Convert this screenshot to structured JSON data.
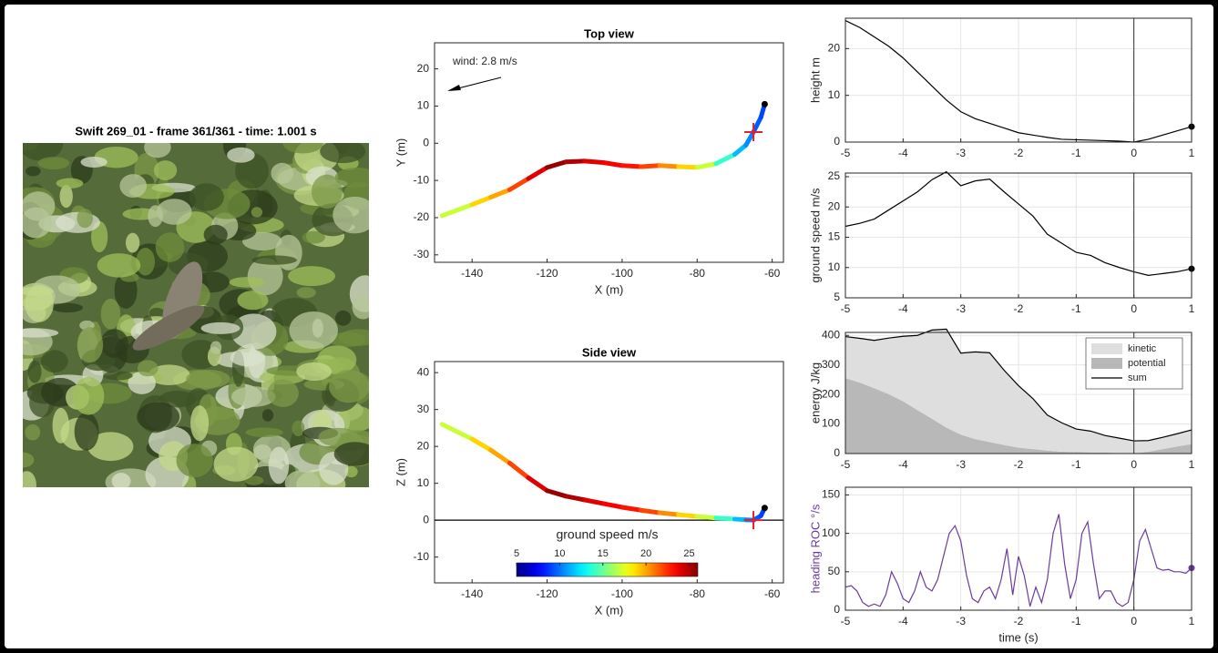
{
  "image_panel": {
    "title": "Swift 269_01 - frame 361/361 - time: 1.001 s"
  },
  "chart_data": [
    {
      "type": "trajectory",
      "title": "Top view",
      "xlabel": "X (m)",
      "ylabel": "Y (m)",
      "annotation": "wind: 2.8 m/s",
      "xlim": [
        -150,
        -57
      ],
      "ylim": [
        -32,
        27
      ],
      "xticks": [
        -140,
        -120,
        -100,
        -80,
        -60
      ],
      "yticks": [
        -30,
        -20,
        -10,
        0,
        10,
        20
      ],
      "colormap": "jet",
      "clim": [
        5,
        26
      ],
      "x": [
        -148,
        -140,
        -135,
        -130,
        -125,
        -120,
        -115,
        -110,
        -105,
        -100,
        -95,
        -90,
        -85,
        -80,
        -75,
        -70,
        -67,
        -65,
        -63,
        -62
      ],
      "values": [
        -19.5,
        -16.5,
        -14.5,
        -12.5,
        -9.5,
        -6.5,
        -5,
        -4.8,
        -5.2,
        -6,
        -6.3,
        -6,
        -6.3,
        -6.5,
        -5.5,
        -3,
        -0.5,
        3,
        7,
        10.5
      ],
      "speed": [
        17,
        19,
        20,
        22,
        24,
        25.5,
        25,
        24,
        23.5,
        23,
        22,
        20.5,
        19,
        17,
        14,
        11.5,
        10.5,
        9.5,
        9,
        9.5
      ],
      "markers": [
        {
          "x": -65,
          "y": 3,
          "shape": "plus",
          "color": "#e8202a"
        },
        {
          "x": -62,
          "y": 10.5,
          "shape": "dot",
          "color": "#000000"
        }
      ]
    },
    {
      "type": "trajectory",
      "title": "Side view",
      "xlabel": "X (m)",
      "ylabel": "Z (m)",
      "xlim": [
        -150,
        -57
      ],
      "ylim": [
        -17,
        43
      ],
      "xticks": [
        -140,
        -120,
        -100,
        -80,
        -60
      ],
      "yticks": [
        -10,
        0,
        10,
        20,
        30,
        40
      ],
      "hline": 0,
      "colormap": "jet",
      "clim": [
        5,
        26
      ],
      "colorbar": {
        "label": "ground speed m/s",
        "ticks": [
          5,
          10,
          15,
          20,
          25
        ]
      },
      "x": [
        -148,
        -140,
        -135,
        -130,
        -125,
        -120,
        -115,
        -110,
        -105,
        -100,
        -95,
        -90,
        -85,
        -80,
        -75,
        -70,
        -67,
        -65,
        -63,
        -62
      ],
      "values": [
        26,
        22,
        19,
        15.5,
        11.5,
        8,
        6.5,
        5.5,
        4.5,
        3.5,
        2.7,
        2,
        1.5,
        1,
        0.6,
        0.3,
        0.1,
        0,
        1.2,
        3.3
      ],
      "speed": [
        17,
        19,
        20,
        22,
        24,
        25.5,
        25,
        24,
        23.5,
        23,
        22,
        20.5,
        19,
        17,
        14,
        11.5,
        10.5,
        9.5,
        9,
        9.5
      ],
      "markers": [
        {
          "x": -65,
          "y": 0,
          "shape": "plus",
          "color": "#e8202a"
        },
        {
          "x": -62,
          "y": 3.3,
          "shape": "dot",
          "color": "#000000"
        }
      ]
    },
    {
      "type": "line",
      "ylabel": "height m",
      "grid": true,
      "vline": 0,
      "end_marker": true,
      "xlim": [
        -5,
        1
      ],
      "ylim": [
        0,
        26.5
      ],
      "xticks": [
        -5,
        -4,
        -3,
        -2,
        -1,
        0,
        1
      ],
      "yticks": [
        0,
        10,
        20
      ],
      "x": [
        -5,
        -4.75,
        -4.5,
        -4.25,
        -4,
        -3.75,
        -3.5,
        -3.25,
        -3,
        -2.75,
        -2.5,
        -2.25,
        -2,
        -1.75,
        -1.5,
        -1.25,
        -1,
        -0.75,
        -0.5,
        -0.25,
        0,
        0.25,
        0.5,
        0.75,
        1
      ],
      "series": [
        {
          "color": "#000000",
          "values": [
            26,
            24.5,
            22.5,
            20.5,
            18,
            15,
            12,
            9,
            6.5,
            5,
            4,
            3,
            2,
            1.5,
            1,
            0.6,
            0.5,
            0.4,
            0.3,
            0.2,
            0,
            0.6,
            1.5,
            2.4,
            3.3
          ]
        }
      ]
    },
    {
      "type": "line",
      "ylabel": "ground speed m/s",
      "grid": true,
      "vline": 0,
      "end_marker": true,
      "xlim": [
        -5,
        1
      ],
      "ylim": [
        5,
        25.6
      ],
      "xticks": [
        -5,
        -4,
        -3,
        -2,
        -1,
        0,
        1
      ],
      "yticks": [
        5,
        10,
        15,
        20,
        25
      ],
      "x": [
        -5,
        -4.75,
        -4.5,
        -4.25,
        -4,
        -3.75,
        -3.5,
        -3.25,
        -3,
        -2.75,
        -2.5,
        -2.25,
        -2,
        -1.75,
        -1.5,
        -1.25,
        -1,
        -0.75,
        -0.5,
        -0.25,
        0,
        0.25,
        0.5,
        0.75,
        1
      ],
      "series": [
        {
          "color": "#000000",
          "values": [
            16.8,
            17.3,
            18,
            19.5,
            21,
            22.5,
            24.5,
            25.8,
            23.5,
            24.3,
            24.6,
            22.5,
            20.5,
            18.5,
            15.5,
            14,
            12.5,
            12,
            10.8,
            10,
            9.3,
            8.7,
            9,
            9.3,
            9.8
          ]
        }
      ]
    },
    {
      "type": "area",
      "ylabel": "energy J/kg",
      "grid": true,
      "vline": 0,
      "legend": "upper right",
      "stacked": true,
      "xlim": [
        -5,
        1
      ],
      "ylim": [
        0,
        410
      ],
      "xticks": [
        -5,
        -4,
        -3,
        -2,
        -1,
        0,
        1
      ],
      "yticks": [
        0,
        100,
        200,
        300,
        400
      ],
      "x": [
        -5,
        -4.75,
        -4.5,
        -4.25,
        -4,
        -3.75,
        -3.5,
        -3.25,
        -3,
        -2.75,
        -2.5,
        -2.25,
        -2,
        -1.75,
        -1.5,
        -1.25,
        -1,
        -0.75,
        -0.5,
        -0.25,
        0,
        0.25,
        0.5,
        0.75,
        1
      ],
      "series": [
        {
          "name": "kinetic",
          "kind": "area",
          "color": "#dedede",
          "values": [
            141,
            150,
            162,
            190,
            220,
            253,
            300,
            333,
            276,
            295,
            302,
            253,
            210,
            171,
            120,
            98,
            78,
            72,
            58,
            50,
            43,
            38,
            40,
            43,
            48
          ]
        },
        {
          "name": "potential",
          "kind": "area",
          "color": "#b8b8b8",
          "values": [
            255,
            240,
            221,
            201,
            177,
            147,
            118,
            88,
            64,
            49,
            39,
            29,
            20,
            15,
            10,
            6,
            5,
            4,
            3,
            2,
            0,
            6,
            15,
            24,
            32
          ]
        },
        {
          "name": "sum",
          "kind": "line",
          "color": "#000000",
          "values": [
            396,
            390,
            383,
            391,
            397,
            400,
            418,
            421,
            340,
            344,
            341,
            282,
            230,
            186,
            130,
            104,
            83,
            76,
            61,
            52,
            43,
            44,
            55,
            67,
            80
          ]
        }
      ]
    },
    {
      "type": "line",
      "ylabel": "heading ROC °/s",
      "ylabel_color": "#6a3d9a",
      "xlabel": "time (s)",
      "grid": true,
      "vline": 0,
      "end_marker": true,
      "xlim": [
        -5,
        1
      ],
      "ylim": [
        0,
        160
      ],
      "xticks": [
        -5,
        -4,
        -3,
        -2,
        -1,
        0,
        1
      ],
      "yticks": [
        0,
        50,
        100,
        150
      ],
      "x": [
        -5,
        -4.9,
        -4.8,
        -4.7,
        -4.6,
        -4.5,
        -4.4,
        -4.3,
        -4.2,
        -4.1,
        -4,
        -3.9,
        -3.8,
        -3.7,
        -3.6,
        -3.5,
        -3.4,
        -3.3,
        -3.2,
        -3.1,
        -3,
        -2.9,
        -2.8,
        -2.7,
        -2.6,
        -2.5,
        -2.4,
        -2.3,
        -2.2,
        -2.1,
        -2,
        -1.9,
        -1.8,
        -1.7,
        -1.6,
        -1.5,
        -1.4,
        -1.3,
        -1.2,
        -1.1,
        -1,
        -0.9,
        -0.8,
        -0.7,
        -0.6,
        -0.5,
        -0.4,
        -0.3,
        -0.2,
        -0.1,
        0,
        0.1,
        0.2,
        0.3,
        0.4,
        0.5,
        0.6,
        0.7,
        0.8,
        0.9,
        1
      ],
      "series": [
        {
          "color": "#6a3d9a",
          "values": [
            30,
            32,
            25,
            10,
            5,
            8,
            5,
            20,
            50,
            35,
            15,
            10,
            25,
            50,
            30,
            25,
            40,
            70,
            100,
            110,
            90,
            45,
            15,
            10,
            25,
            30,
            15,
            40,
            80,
            20,
            70,
            45,
            5,
            30,
            10,
            40,
            100,
            125,
            60,
            15,
            40,
            100,
            115,
            60,
            15,
            25,
            25,
            10,
            5,
            10,
            40,
            90,
            105,
            80,
            55,
            52,
            53,
            50,
            50,
            48,
            55
          ]
        }
      ]
    }
  ]
}
